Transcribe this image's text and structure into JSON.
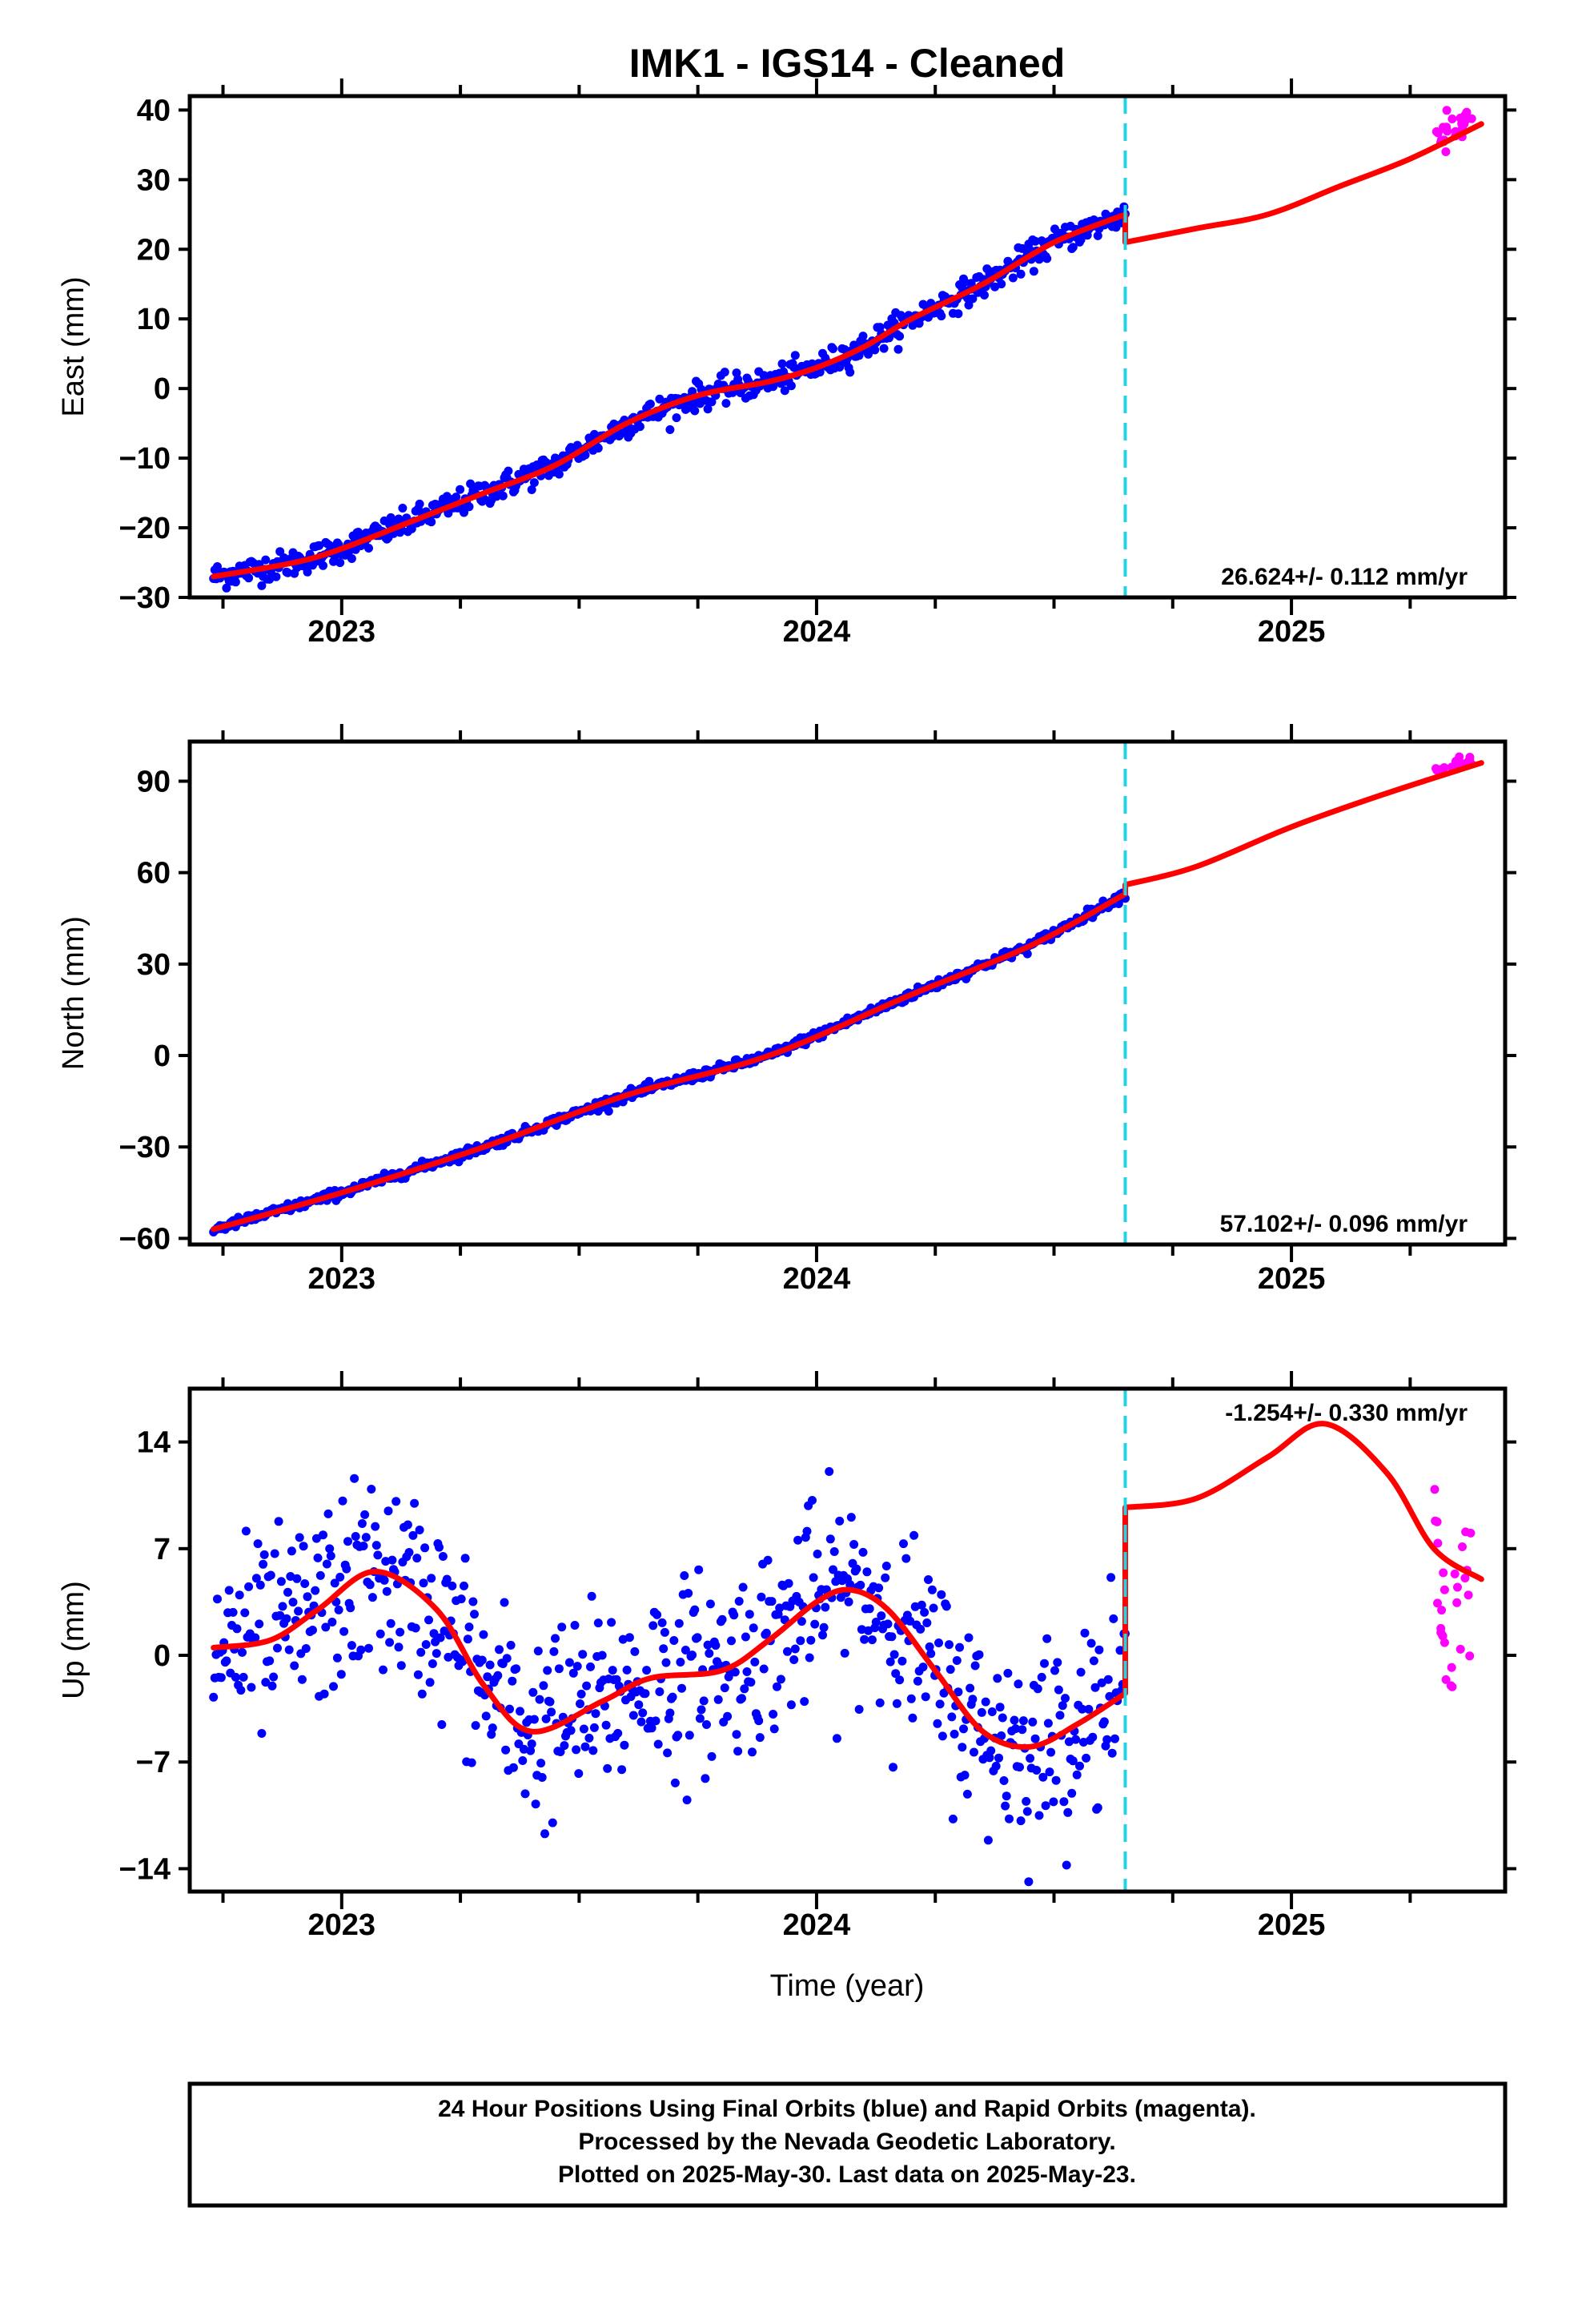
{
  "chart_data": {
    "type": "scatter",
    "title": "IMK1  - IGS14 - Cleaned",
    "xlabel": "Time (year)",
    "x_ticks": [
      "2023",
      "2024",
      "2025"
    ],
    "xlim": [
      2022.68,
      2025.45
    ],
    "colors": {
      "final": "#0000ff",
      "rapid": "#ff00ff",
      "model": "#ff0000",
      "break": "#22d3e6"
    },
    "break_x": 2024.65,
    "panels": [
      {
        "ylabel": "East (mm)",
        "ylim": [
          -30,
          42
        ],
        "y_ticks": [
          -30,
          -20,
          -10,
          0,
          10,
          20,
          30,
          40
        ],
        "y_tick_labels": [
          "−30",
          "−20",
          "−10",
          "0",
          "10",
          "20",
          "30",
          "40"
        ],
        "rate_label": "26.624+/- 0.112 mm/yr",
        "rate_position": "bottom-right",
        "model_pre": [
          [
            2022.73,
            -27
          ],
          [
            2022.9,
            -25
          ],
          [
            2023.0,
            -23
          ],
          [
            2023.15,
            -19
          ],
          [
            2023.3,
            -15
          ],
          [
            2023.45,
            -11
          ],
          [
            2023.6,
            -5
          ],
          [
            2023.75,
            -1
          ],
          [
            2023.9,
            1
          ],
          [
            2024.0,
            3
          ],
          [
            2024.1,
            6
          ],
          [
            2024.2,
            10
          ],
          [
            2024.35,
            15
          ],
          [
            2024.5,
            21
          ],
          [
            2024.65,
            25
          ]
        ],
        "model_post": [
          [
            2024.65,
            21
          ],
          [
            2024.8,
            23
          ],
          [
            2024.95,
            25
          ],
          [
            2025.1,
            29
          ],
          [
            2025.25,
            33
          ],
          [
            2025.4,
            38
          ]
        ],
        "trend": {
          "x0": 2022.73,
          "x1": 2024.65,
          "y0": -27,
          "y1": 25,
          "seasonal_amp": 1.5,
          "noise": 1.6
        },
        "rapid": {
          "x0": 2025.3,
          "x1": 2025.38,
          "y0": 35,
          "y1": 39,
          "noise": 2.0
        }
      },
      {
        "ylabel": "North (mm)",
        "ylim": [
          -62,
          103
        ],
        "y_ticks": [
          -60,
          -30,
          0,
          30,
          60,
          90
        ],
        "y_tick_labels": [
          "−60",
          "−30",
          "0",
          "30",
          "60",
          "90"
        ],
        "rate_label": "57.102+/- 0.096 mm/yr",
        "rate_position": "bottom-right",
        "model_pre": [
          [
            2022.73,
            -57
          ],
          [
            2023.0,
            -45
          ],
          [
            2023.3,
            -30
          ],
          [
            2023.6,
            -13
          ],
          [
            2023.9,
            0
          ],
          [
            2024.2,
            20
          ],
          [
            2024.45,
            36
          ],
          [
            2024.65,
            53
          ]
        ],
        "model_post": [
          [
            2024.65,
            56
          ],
          [
            2024.8,
            62
          ],
          [
            2025.0,
            75
          ],
          [
            2025.2,
            86
          ],
          [
            2025.4,
            96
          ]
        ],
        "trend": {
          "x0": 2022.73,
          "x1": 2024.65,
          "y0": -57,
          "y1": 53,
          "seasonal_amp": 1.0,
          "noise": 1.3
        },
        "rapid": {
          "x0": 2025.3,
          "x1": 2025.38,
          "y0": 93,
          "y1": 97,
          "noise": 1.8
        }
      },
      {
        "ylabel": "Up (mm)",
        "ylim": [
          -15.5,
          17.5
        ],
        "y_ticks": [
          -14,
          -7,
          0,
          7,
          14
        ],
        "y_tick_labels": [
          "−14",
          "−7",
          "0",
          "7",
          "14"
        ],
        "rate_label": "-1.254+/- 0.330 mm/yr",
        "rate_position": "top-right",
        "model_pre": [
          [
            2022.73,
            0.5
          ],
          [
            2022.85,
            1
          ],
          [
            2022.95,
            3
          ],
          [
            2023.07,
            5.5
          ],
          [
            2023.2,
            3
          ],
          [
            2023.3,
            -2
          ],
          [
            2023.4,
            -5
          ],
          [
            2023.55,
            -3
          ],
          [
            2023.65,
            -1.5
          ],
          [
            2023.8,
            -1
          ],
          [
            2023.9,
            1
          ],
          [
            2024.0,
            3.5
          ],
          [
            2024.07,
            4.3
          ],
          [
            2024.15,
            3
          ],
          [
            2024.25,
            -1
          ],
          [
            2024.35,
            -5
          ],
          [
            2024.45,
            -6
          ],
          [
            2024.55,
            -4.5
          ],
          [
            2024.65,
            -2.5
          ]
        ],
        "model_post": [
          [
            2024.65,
            9.7
          ],
          [
            2024.8,
            10.3
          ],
          [
            2024.95,
            13
          ],
          [
            2025.07,
            15.2
          ],
          [
            2025.2,
            12
          ],
          [
            2025.3,
            7
          ],
          [
            2025.4,
            5
          ]
        ],
        "trend": {
          "x0": 2022.73,
          "x1": 2024.65,
          "y0": 1,
          "y1": -3,
          "seasonal_amp": 5,
          "noise": 4.2
        },
        "rapid": {
          "x0": 2025.3,
          "x1": 2025.38,
          "y0": 5,
          "y1": 5,
          "noise": 6.0
        }
      }
    ]
  },
  "footer": {
    "line1": "24 Hour Positions Using Final Orbits (blue) and Rapid Orbits (magenta).",
    "line2": "Processed by the Nevada Geodetic Laboratory.",
    "line3": "Plotted on 2025-May-30. Last data on 2025-May-23."
  }
}
